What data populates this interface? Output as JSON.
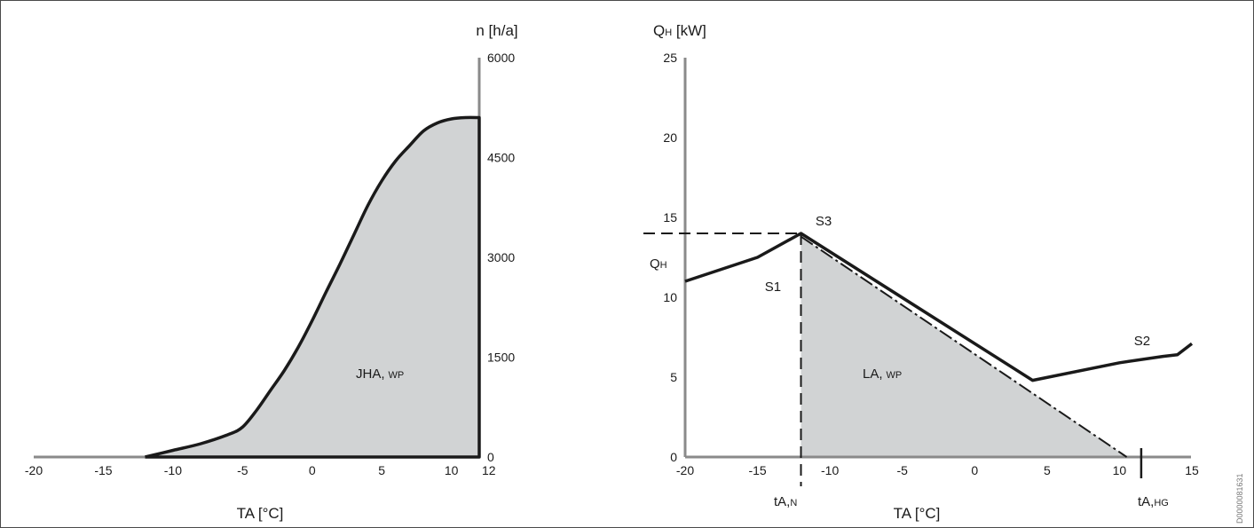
{
  "document_id": "D0000081631",
  "chart_data": [
    {
      "type": "area",
      "x_ticks": [
        -20,
        -15,
        -10,
        -5,
        0,
        5,
        10,
        12
      ],
      "y_ticks": [
        0,
        1500,
        3000,
        4500,
        6000
      ],
      "xlim": [
        -20,
        12
      ],
      "ylim": [
        0,
        6000
      ],
      "xlabel": "TA [°C]",
      "ylabel": "n [h/a]",
      "series": [
        {
          "x": [
            -12,
            -10,
            -8,
            -6,
            -5,
            -4,
            -3,
            -2,
            -1,
            0,
            1,
            2,
            3,
            4,
            5,
            6,
            7,
            8,
            9,
            10,
            11,
            12
          ],
          "y": [
            0,
            100,
            200,
            340,
            450,
            700,
            1000,
            1300,
            1650,
            2050,
            2480,
            2900,
            3340,
            3780,
            4150,
            4450,
            4680,
            4900,
            5020,
            5080,
            5100,
            5100
          ]
        }
      ],
      "area_label": "JHA,",
      "area_label_sub": "WP"
    },
    {
      "type": "line",
      "x_ticks": [
        -20,
        -15,
        -10,
        -5,
        0,
        5,
        10,
        15
      ],
      "y_ticks": [
        0,
        5,
        10,
        15,
        20,
        25
      ],
      "xlim": [
        -20,
        15
      ],
      "ylim": [
        0,
        25
      ],
      "xlabel": "TA [°C]",
      "ylabel": "QH [kW]",
      "ylabel_main": "Q",
      "ylabel_sub": "H",
      "ylabel_unit": " [kW]",
      "series": [
        {
          "x": [
            -20,
            -15,
            -12,
            4,
            10,
            13,
            14,
            15
          ],
          "y": [
            11,
            12.5,
            14,
            4.8,
            5.9,
            6.3,
            6.4,
            7.1
          ]
        },
        {
          "x": [
            -12,
            10.5
          ],
          "y": [
            13.8,
            0
          ]
        }
      ],
      "area_polygon": {
        "x": [
          -12,
          -12,
          10.5
        ],
        "y": [
          0,
          13.8,
          0
        ]
      },
      "reference_lines": {
        "x": -12,
        "y": 14
      },
      "marker": {
        "x": 11.5,
        "y": 0
      },
      "annotations": [
        {
          "text": "S3",
          "x": -11,
          "y": 14.5
        },
        {
          "text": "S1",
          "x": -14.5,
          "y": 10.4
        },
        {
          "text": "S2",
          "x": 11,
          "y": 7
        }
      ],
      "area_label": "LA,",
      "area_label_sub": "WP",
      "qh_label": {
        "main": "Q",
        "sub": "H"
      },
      "tan_label": {
        "main": "tA,",
        "sub": "N"
      },
      "tahg_label": {
        "main": "tA,",
        "sub": "HG"
      }
    }
  ]
}
